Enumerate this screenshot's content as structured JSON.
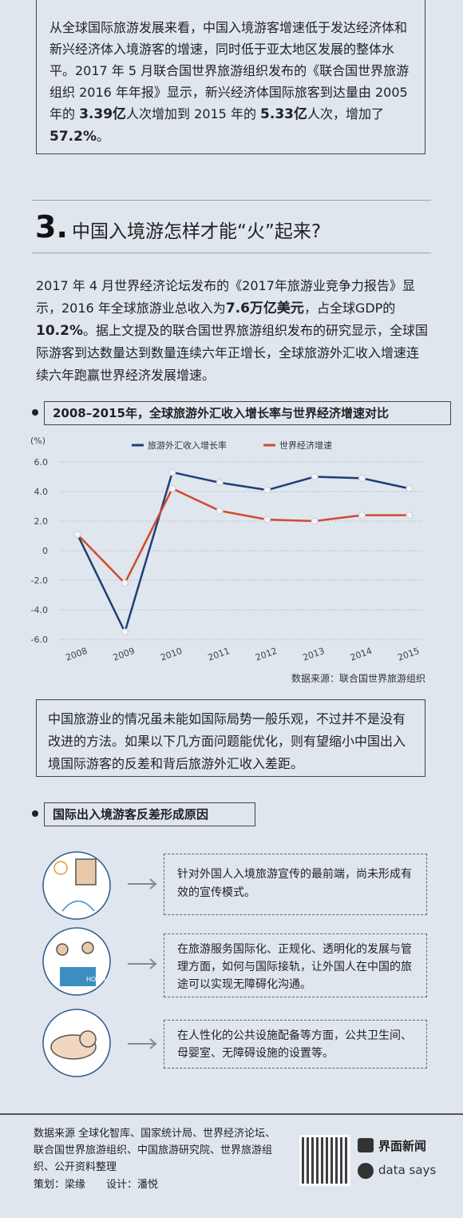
{
  "intro": {
    "segments": [
      "从全球国际旅游发展来看，中国入境游客增速低于发达经济体和新兴经济体入境游客的增速，同时低于亚太地区发展的整体水平。2017 年 5 月联合国世界旅游组织发布的《联合国世界旅游组织 2016 年年报》显示，新兴经济体国际旅客到达量由 2005 年的 ",
      "3.39亿",
      "人次增加到 2015 年的 ",
      "5.33亿",
      "人次，增加了 ",
      "57.2%",
      "。"
    ]
  },
  "section": {
    "number": "3.",
    "title": "中国入境游怎样才能“火”起来?"
  },
  "paragraph": {
    "segments": [
      "2017 年 4 月世界经济论坛发布的《2017年旅游业竞争力报告》显示，2016 年全球旅游业总收入为",
      "7.6万亿美元",
      "，占全球GDP的",
      "10.2%",
      "。据上文提及的联合国世界旅游组织发布的研究显示，全球国际游客到达数量达到数量连续六年正增长，全球旅游外汇收入增速连续六年跑赢世界经济发展增速。"
    ]
  },
  "chart_data": {
    "type": "line",
    "title": "2008–2015年，全球旅游外汇收入增长率与世界经济增速对比",
    "y_label": "(%)",
    "categories": [
      "2008",
      "2009",
      "2010",
      "2011",
      "2012",
      "2013",
      "2014",
      "2015"
    ],
    "series": [
      {
        "name": "旅游外汇收入增长率",
        "color": "#1f3f73",
        "values": [
          1.1,
          -5.5,
          5.3,
          4.6,
          4.1,
          5.0,
          4.9,
          4.2
        ]
      },
      {
        "name": "世界经济增速",
        "color": "#d24a2c",
        "values": [
          1.1,
          -2.2,
          4.2,
          2.7,
          2.1,
          2.0,
          2.4,
          2.4
        ]
      }
    ],
    "ylim": [
      -6,
      6
    ],
    "yticks": [
      {
        "value": -6,
        "label": "-6.0"
      },
      {
        "value": -4,
        "label": "-4.0"
      },
      {
        "value": -2,
        "label": "-2.0"
      },
      0,
      {
        "value": 2,
        "label": "2.0"
      },
      {
        "value": 4,
        "label": "4.0"
      },
      {
        "value": 6,
        "label": "6.0"
      }
    ],
    "grid": true,
    "source": "数据来源：联合国世界旅游组织"
  },
  "note": "中国旅游业的情况虽未能如国际局势一般乐观，不过并不是没有改进的方法。如果以下几方面问题能优化，则有望缩小中国出入境国际游客的反差和背后旅游外汇收入差距。",
  "reasons": {
    "title": "国际出入境游客反差形成原因",
    "items": [
      "针对外国人入境旅游宣传的最前端，尚未形成有效的宣传模式。",
      "在旅游服务国际化、正规化、透明化的发展与管理方面，如何与国际接轨，让外国人在中国的旅途可以实现无障碍化沟通。",
      "在人性化的公共设施配备等方面，公共卫生间、母婴室、无障碍设施的设置等。"
    ],
    "icon_text": "HOTEL"
  },
  "footer": {
    "lines": [
      "数据来源 全球化智库、国家统计局、世界经济论坛、联合国世界旅游组织、中国旅游研究院、世界旅游组织、公开资料整理",
      "策划：梁缘　　设计：潘悦"
    ],
    "logo1": "界面新闻",
    "logo2": "data says"
  }
}
